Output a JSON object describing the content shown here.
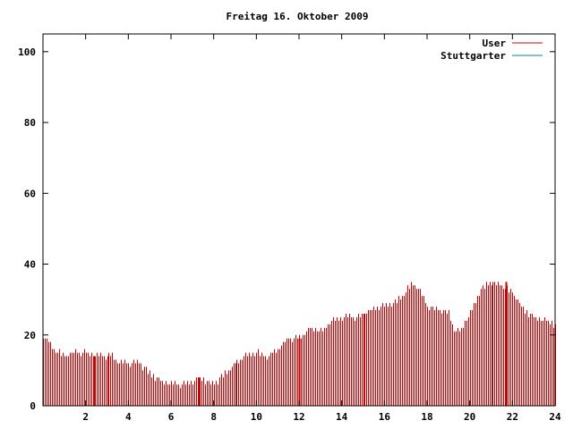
{
  "chart_data": {
    "type": "bar",
    "title": "Freitag 16. Oktober 2009",
    "xlabel": "",
    "ylabel": "",
    "xlim": [
      0,
      24
    ],
    "ylim": [
      0,
      105
    ],
    "x_ticks": [
      2,
      4,
      6,
      8,
      10,
      12,
      14,
      16,
      18,
      20,
      22,
      24
    ],
    "y_ticks": [
      0,
      20,
      40,
      60,
      80,
      100
    ],
    "grid": false,
    "legend_position": "top-right",
    "colors": {
      "User": "#cc0000",
      "Stuttgarter": "#008b8b"
    },
    "series": [
      {
        "name": "User",
        "description_points": "hourly-anchor values, bars drawn every 5 minutes",
        "x": [
          0,
          0.5,
          1,
          1.5,
          2,
          2.5,
          3,
          3.3,
          3.6,
          4,
          4.5,
          5,
          5.5,
          6,
          6.5,
          7,
          7.3,
          7.6,
          8,
          8.5,
          9,
          9.5,
          10,
          10.5,
          11,
          11.5,
          12,
          12.5,
          13,
          13.5,
          14,
          14.5,
          15,
          15.5,
          16,
          16.5,
          17,
          17.3,
          17.6,
          18,
          18.5,
          19,
          19.3,
          19.6,
          20,
          20.5,
          21,
          21.5,
          22,
          22.5,
          23,
          23.5,
          24
        ],
        "values": [
          20,
          16,
          14,
          15,
          15,
          14,
          14,
          14,
          12,
          12,
          12,
          9,
          7,
          6,
          6,
          7,
          8,
          7,
          6,
          9,
          12,
          14,
          15,
          14,
          16,
          19,
          19,
          22,
          21,
          24,
          25,
          25,
          26,
          27,
          28,
          29,
          32,
          35,
          33,
          28,
          27,
          26,
          21,
          22,
          26,
          33,
          35,
          34,
          32,
          27,
          25,
          24,
          23
        ],
        "spikes": [
          {
            "x": 2.4,
            "value": 14
          },
          {
            "x": 7.3,
            "value": 8
          },
          {
            "x": 12,
            "value": 19
          },
          {
            "x": 21.7,
            "value": 35
          }
        ]
      },
      {
        "name": "Stuttgarter",
        "x": [],
        "values": []
      }
    ]
  }
}
